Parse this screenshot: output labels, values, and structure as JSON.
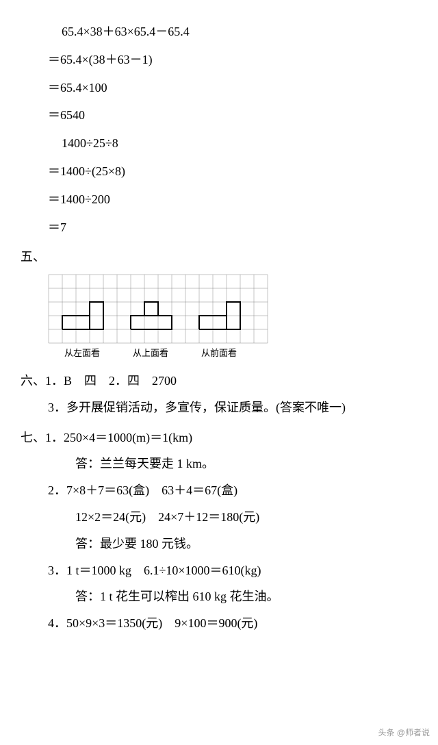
{
  "calc1": {
    "l1": "65.4×38＋63×65.4－65.4",
    "l2": "＝65.4×(38＋63－1)",
    "l3": "＝65.4×100",
    "l4": "＝6540"
  },
  "calc2": {
    "l1": "1400÷25÷8",
    "l2": "＝1400÷(25×8)",
    "l3": "＝1400÷200",
    "l4": "＝7"
  },
  "section5": {
    "label": "五、",
    "grid": {
      "cols": 16,
      "rows": 5,
      "cell": 20,
      "thin_color": "#888",
      "bold_color": "#000",
      "bold_paths": [
        [
          [
            1,
            4
          ],
          [
            4,
            4
          ],
          [
            4,
            2
          ],
          [
            3,
            2
          ],
          [
            3,
            3
          ],
          [
            1,
            3
          ],
          [
            1,
            4
          ]
        ],
        [
          [
            6,
            4
          ],
          [
            9,
            4
          ],
          [
            9,
            3
          ],
          [
            8,
            3
          ],
          [
            8,
            2
          ],
          [
            7,
            2
          ],
          [
            7,
            3
          ],
          [
            6,
            3
          ],
          [
            6,
            4
          ]
        ],
        [
          [
            11,
            4
          ],
          [
            14,
            4
          ],
          [
            14,
            2
          ],
          [
            13,
            2
          ],
          [
            13,
            3
          ],
          [
            11,
            3
          ],
          [
            11,
            4
          ]
        ]
      ],
      "bold_inner": [
        [
          [
            3,
            3
          ],
          [
            3,
            4
          ]
        ],
        [
          [
            7,
            3
          ],
          [
            8,
            3
          ]
        ],
        [
          [
            13,
            3
          ],
          [
            13,
            4
          ]
        ]
      ]
    },
    "captions": [
      "从左面看",
      "从上面看",
      "从前面看"
    ]
  },
  "section6": {
    "label": "六、",
    "l1": "1．B　四　2．四　2700",
    "l2": "3．多开展促销活动，多宣传，保证质量。(答案不唯一)"
  },
  "section7": {
    "label": "七、",
    "q1": {
      "a": "1．250×4＝1000(m)＝1(km)",
      "b": "答：兰兰每天要走 1 km。"
    },
    "q2": {
      "a": "2．7×8＋7＝63(盒)　63＋4＝67(盒)",
      "b": "12×2＝24(元)　24×7＋12＝180(元)",
      "c": "答：最少要 180 元钱。"
    },
    "q3": {
      "a": "3．1 t＝1000 kg　6.1÷10×1000＝610(kg)",
      "b": "答：1 t 花生可以榨出 610 kg 花生油。"
    },
    "q4": {
      "a": "4．50×9×3＝1350(元)　9×100＝900(元)"
    }
  },
  "footer": "头条 @师者说"
}
